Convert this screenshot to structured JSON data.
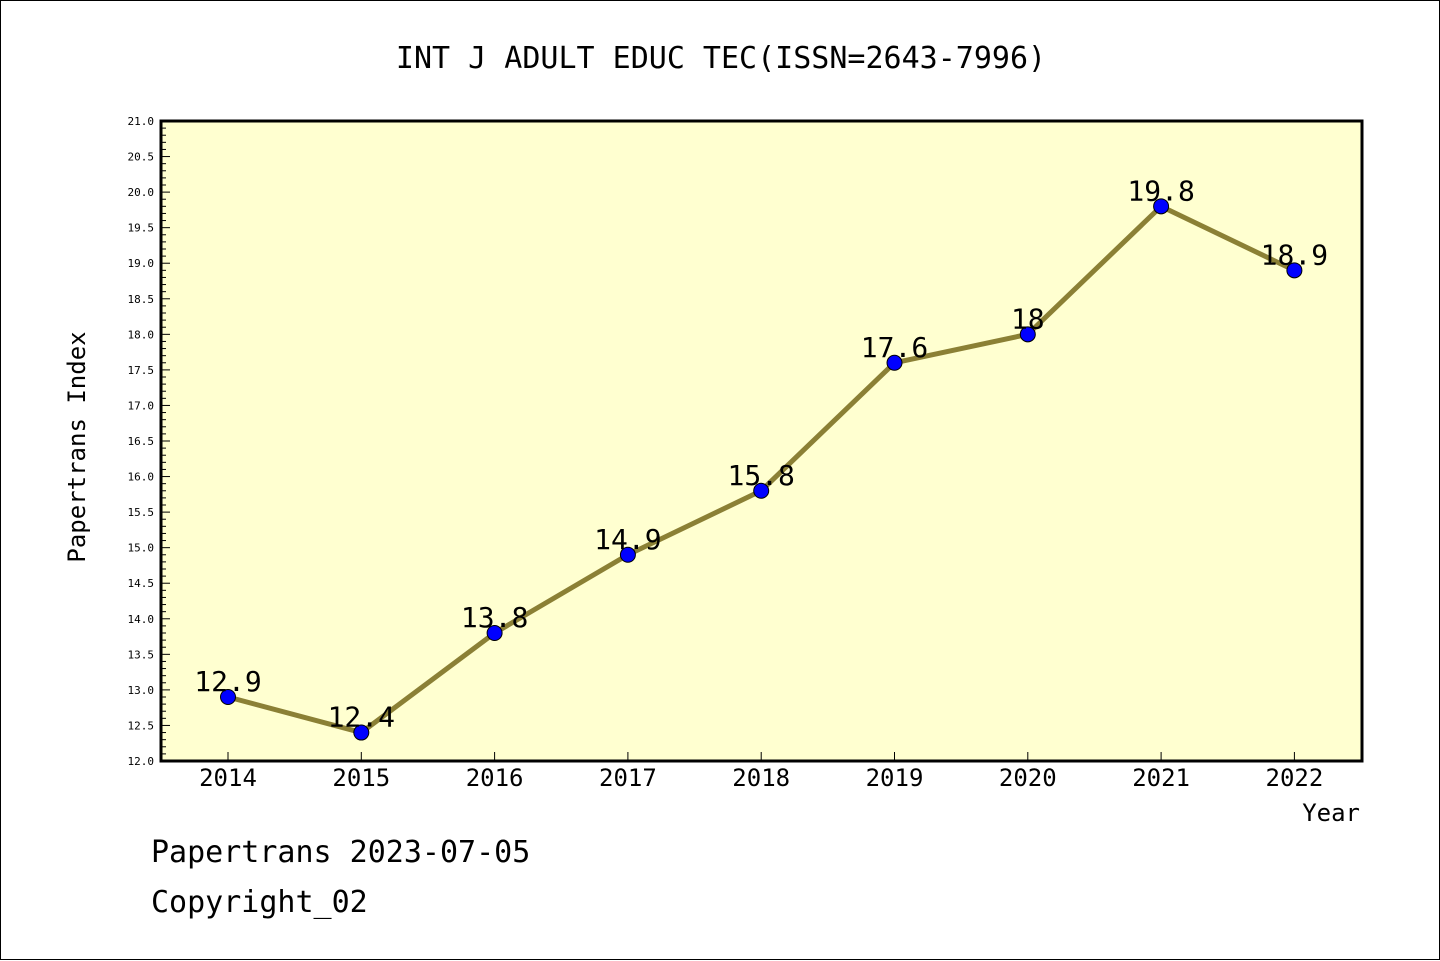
{
  "chart_data": {
    "type": "line",
    "title": "INT J ADULT EDUC TEC(ISSN=2643-7996)",
    "xlabel": "Year",
    "ylabel": "Papertrans Index",
    "categories": [
      "2014",
      "2015",
      "2016",
      "2017",
      "2018",
      "2019",
      "2020",
      "2021",
      "2022"
    ],
    "values": [
      12.9,
      12.4,
      13.8,
      14.9,
      15.8,
      17.6,
      18,
      19.8,
      18.9
    ],
    "data_labels": [
      "12.9",
      "12.4",
      "13.8",
      "14.9",
      "15.8",
      "17.6",
      "18",
      "19.8",
      "18.9"
    ],
    "ylim": [
      12.0,
      21.0
    ],
    "yticks": [
      "12.0",
      "12.5",
      "13.0",
      "13.5",
      "14.0",
      "14.5",
      "15.0",
      "15.5",
      "16.0",
      "16.5",
      "17.0",
      "17.5",
      "18.0",
      "18.5",
      "19.0",
      "19.5",
      "20.0",
      "20.5",
      "21.0"
    ],
    "grid": false,
    "legend": "none",
    "colors": {
      "plot_background": "#ffffd0",
      "line": "#8b8035",
      "marker": "#0000ff"
    }
  },
  "footer": {
    "line1": "Papertrans 2023-07-05",
    "line2": "Copyright_02"
  }
}
